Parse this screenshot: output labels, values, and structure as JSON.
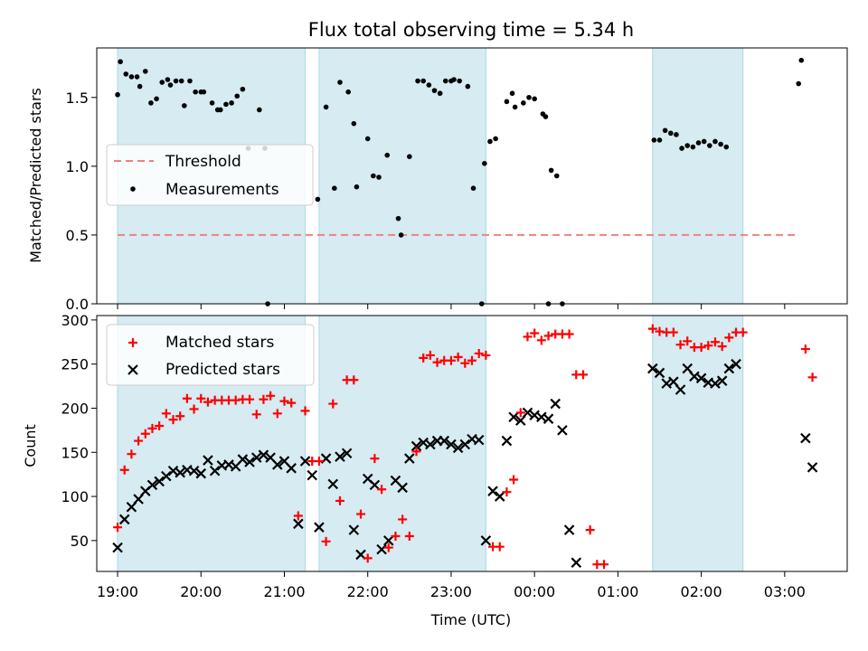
{
  "title": "Flux total observing time = 5.34 h",
  "chart_data": [
    {
      "type": "scatter",
      "ylabel": "Matched/Predicted stars",
      "ylim": [
        0,
        1.86
      ],
      "yticks": [
        "0.0",
        "0.5",
        "1.0",
        "1.5"
      ],
      "legend": {
        "placement": "center-left",
        "threshold_label": "Threshold",
        "measurements_label": "Measurements"
      },
      "threshold": 0.5,
      "threshold_color": "#f08080",
      "threshold_x_range": [
        "19:00",
        "03:10"
      ],
      "measurements": [
        [
          "19:00",
          1.52
        ],
        [
          "19:02",
          1.76
        ],
        [
          "19:06",
          1.67
        ],
        [
          "19:10",
          1.65
        ],
        [
          "19:14",
          1.65
        ],
        [
          "19:16",
          1.58
        ],
        [
          "19:20",
          1.69
        ],
        [
          "19:24",
          1.46
        ],
        [
          "19:28",
          1.49
        ],
        [
          "19:32",
          1.61
        ],
        [
          "19:36",
          1.63
        ],
        [
          "19:38",
          1.59
        ],
        [
          "19:42",
          1.62
        ],
        [
          "19:46",
          1.62
        ],
        [
          "19:48",
          1.44
        ],
        [
          "19:52",
          1.62
        ],
        [
          "19:56",
          1.54
        ],
        [
          "20:00",
          1.54
        ],
        [
          "20:02",
          1.54
        ],
        [
          "20:08",
          1.46
        ],
        [
          "20:12",
          1.41
        ],
        [
          "20:14",
          1.41
        ],
        [
          "20:18",
          1.45
        ],
        [
          "20:22",
          1.46
        ],
        [
          "20:26",
          1.51
        ],
        [
          "20:30",
          1.56
        ],
        [
          "20:34",
          1.13
        ],
        [
          "20:42",
          1.41
        ],
        [
          "20:46",
          1.13
        ],
        [
          "20:48",
          0.0
        ],
        [
          "21:24",
          0.76
        ],
        [
          "21:30",
          1.43
        ],
        [
          "21:36",
          0.84
        ],
        [
          "21:40",
          1.61
        ],
        [
          "21:46",
          1.54
        ],
        [
          "21:50",
          1.31
        ],
        [
          "21:52",
          0.85
        ],
        [
          "22:00",
          1.2
        ],
        [
          "22:04",
          0.93
        ],
        [
          "22:08",
          0.92
        ],
        [
          "22:14",
          1.08
        ],
        [
          "22:22",
          0.62
        ],
        [
          "22:24",
          0.5
        ],
        [
          "22:30",
          1.07
        ],
        [
          "22:36",
          1.62
        ],
        [
          "22:40",
          1.62
        ],
        [
          "22:44",
          1.59
        ],
        [
          "22:48",
          1.55
        ],
        [
          "22:52",
          1.53
        ],
        [
          "22:56",
          1.62
        ],
        [
          "23:00",
          1.62
        ],
        [
          "23:02",
          1.63
        ],
        [
          "23:06",
          1.62
        ],
        [
          "23:12",
          1.58
        ],
        [
          "23:16",
          0.84
        ],
        [
          "23:22",
          0.0
        ],
        [
          "23:24",
          1.02
        ],
        [
          "23:28",
          1.18
        ],
        [
          "23:32",
          1.2
        ],
        [
          "23:40",
          1.47
        ],
        [
          "23:44",
          1.53
        ],
        [
          "23:46",
          1.43
        ],
        [
          "23:52",
          1.46
        ],
        [
          "23:56",
          1.5
        ],
        [
          "00:00",
          1.49
        ],
        [
          "00:06",
          1.38
        ],
        [
          "00:08",
          1.36
        ],
        [
          "00:10",
          0.0
        ],
        [
          "00:12",
          0.97
        ],
        [
          "00:16",
          0.93
        ],
        [
          "00:20",
          0.0
        ],
        [
          "01:26",
          1.19
        ],
        [
          "01:30",
          1.19
        ],
        [
          "01:34",
          1.26
        ],
        [
          "01:38",
          1.24
        ],
        [
          "01:42",
          1.23
        ],
        [
          "01:46",
          1.13
        ],
        [
          "01:50",
          1.15
        ],
        [
          "01:54",
          1.14
        ],
        [
          "01:58",
          1.17
        ],
        [
          "02:02",
          1.18
        ],
        [
          "02:06",
          1.15
        ],
        [
          "02:10",
          1.18
        ],
        [
          "02:14",
          1.16
        ],
        [
          "02:18",
          1.14
        ],
        [
          "03:10",
          1.6
        ],
        [
          "03:12",
          1.77
        ]
      ]
    },
    {
      "type": "scatter",
      "xlabel": "Time (UTC)",
      "ylabel": "Count",
      "ylim": [
        15,
        305
      ],
      "yticks": [
        "50",
        "100",
        "150",
        "200",
        "250",
        "300"
      ],
      "xticks": [
        "19:00",
        "20:00",
        "21:00",
        "22:00",
        "23:00",
        "00:00",
        "01:00",
        "02:00",
        "03:00"
      ],
      "xlim": [
        "18:45",
        "03:45"
      ],
      "legend": {
        "placement": "top-left",
        "matched_label": "Matched stars",
        "predicted_label": "Predicted stars"
      },
      "matched_color": "#ff0000",
      "predicted_color": "#000000",
      "shaded_spans": [
        [
          "19:00",
          "21:15"
        ],
        [
          "21:25",
          "23:25"
        ],
        [
          "01:25",
          "02:30"
        ]
      ],
      "shade_color": "#add8e6",
      "series": [
        {
          "name": "Matched stars",
          "points": [
            [
              "19:00",
              65
            ],
            [
              "19:05",
              130
            ],
            [
              "19:10",
              148
            ],
            [
              "19:15",
              163
            ],
            [
              "19:20",
              171
            ],
            [
              "19:25",
              177
            ],
            [
              "19:30",
              180
            ],
            [
              "19:35",
              194
            ],
            [
              "19:40",
              187
            ],
            [
              "19:45",
              191
            ],
            [
              "19:50",
              211
            ],
            [
              "19:55",
              199
            ],
            [
              "20:00",
              211
            ],
            [
              "20:05",
              207
            ],
            [
              "20:10",
              209
            ],
            [
              "20:15",
              209
            ],
            [
              "20:20",
              209
            ],
            [
              "20:25",
              209
            ],
            [
              "20:30",
              210
            ],
            [
              "20:35",
              210
            ],
            [
              "20:40",
              193
            ],
            [
              "20:45",
              210
            ],
            [
              "20:50",
              214
            ],
            [
              "20:55",
              194
            ],
            [
              "21:00",
              208
            ],
            [
              "21:05",
              206
            ],
            [
              "21:10",
              78
            ],
            [
              "21:15",
              197
            ],
            [
              "21:20",
              140
            ],
            [
              "21:25",
              140
            ],
            [
              "21:30",
              49
            ],
            [
              "21:35",
              205
            ],
            [
              "21:40",
              95
            ],
            [
              "21:45",
              232
            ],
            [
              "21:50",
              232
            ],
            [
              "21:55",
              80
            ],
            [
              "22:00",
              30
            ],
            [
              "22:05",
              143
            ],
            [
              "22:10",
              108
            ],
            [
              "22:15",
              42
            ],
            [
              "22:20",
              55
            ],
            [
              "22:25",
              74
            ],
            [
              "22:30",
              55
            ],
            [
              "22:35",
              151
            ],
            [
              "22:40",
              257
            ],
            [
              "22:45",
              260
            ],
            [
              "22:50",
              252
            ],
            [
              "22:55",
              254
            ],
            [
              "23:00",
              254
            ],
            [
              "23:05",
              258
            ],
            [
              "23:10",
              251
            ],
            [
              "23:15",
              254
            ],
            [
              "23:20",
              262
            ],
            [
              "23:25",
              260
            ],
            [
              "23:30",
              43
            ],
            [
              "23:35",
              43
            ],
            [
              "23:40",
              105
            ],
            [
              "23:45",
              119
            ],
            [
              "23:50",
              195
            ],
            [
              "23:55",
              281
            ],
            [
              "00:00",
              285
            ],
            [
              "00:05",
              277
            ],
            [
              "00:10",
              282
            ],
            [
              "00:15",
              284
            ],
            [
              "00:20",
              284
            ],
            [
              "00:25",
              284
            ],
            [
              "00:30",
              238
            ],
            [
              "00:35",
              238
            ],
            [
              "00:40",
              62
            ],
            [
              "00:45",
              23
            ],
            [
              "00:50",
              23
            ],
            [
              "01:25",
              290
            ],
            [
              "01:30",
              287
            ],
            [
              "01:35",
              286
            ],
            [
              "01:40",
              286
            ],
            [
              "01:45",
              272
            ],
            [
              "01:50",
              276
            ],
            [
              "01:55",
              269
            ],
            [
              "02:00",
              269
            ],
            [
              "02:05",
              271
            ],
            [
              "02:10",
              275
            ],
            [
              "02:15",
              270
            ],
            [
              "02:20",
              280
            ],
            [
              "02:25",
              286
            ],
            [
              "02:30",
              286
            ],
            [
              "03:15",
              267
            ],
            [
              "03:20",
              235
            ]
          ]
        },
        {
          "name": "Predicted stars",
          "points": [
            [
              "19:00",
              42
            ],
            [
              "19:05",
              74
            ],
            [
              "19:10",
              88
            ],
            [
              "19:15",
              97
            ],
            [
              "19:20",
              106
            ],
            [
              "19:25",
              113
            ],
            [
              "19:30",
              117
            ],
            [
              "19:35",
              123
            ],
            [
              "19:40",
              129
            ],
            [
              "19:45",
              127
            ],
            [
              "19:50",
              130
            ],
            [
              "19:55",
              129
            ],
            [
              "20:00",
              126
            ],
            [
              "20:05",
              141
            ],
            [
              "20:10",
              129
            ],
            [
              "20:15",
              135
            ],
            [
              "20:20",
              136
            ],
            [
              "20:25",
              134
            ],
            [
              "20:30",
              142
            ],
            [
              "20:35",
              139
            ],
            [
              "20:40",
              144
            ],
            [
              "20:45",
              147
            ],
            [
              "20:50",
              144
            ],
            [
              "20:55",
              136
            ],
            [
              "21:00",
              140
            ],
            [
              "21:05",
              132
            ],
            [
              "21:10",
              69
            ],
            [
              "21:15",
              140
            ],
            [
              "21:20",
              124
            ],
            [
              "21:25",
              65
            ],
            [
              "21:30",
              143
            ],
            [
              "21:35",
              114
            ],
            [
              "21:40",
              145
            ],
            [
              "21:45",
              149
            ],
            [
              "21:50",
              62
            ],
            [
              "21:55",
              34
            ],
            [
              "22:00",
              120
            ],
            [
              "22:05",
              113
            ],
            [
              "22:10",
              40
            ],
            [
              "22:15",
              50
            ],
            [
              "22:20",
              118
            ],
            [
              "22:25",
              110
            ],
            [
              "22:30",
              143
            ],
            [
              "22:35",
              157
            ],
            [
              "22:40",
              161
            ],
            [
              "22:45",
              159
            ],
            [
              "22:50",
              163
            ],
            [
              "22:55",
              163
            ],
            [
              "23:00",
              159
            ],
            [
              "23:05",
              155
            ],
            [
              "23:10",
              159
            ],
            [
              "23:15",
              165
            ],
            [
              "23:20",
              164
            ],
            [
              "23:25",
              50
            ],
            [
              "23:30",
              106
            ],
            [
              "23:35",
              100
            ],
            [
              "23:40",
              163
            ],
            [
              "23:45",
              190
            ],
            [
              "23:50",
              186
            ],
            [
              "23:55",
              195
            ],
            [
              "00:00",
              192
            ],
            [
              "00:05",
              190
            ],
            [
              "00:10",
              188
            ],
            [
              "00:15",
              205
            ],
            [
              "00:20",
              175
            ],
            [
              "00:25",
              62
            ],
            [
              "00:30",
              25
            ],
            [
              "01:25",
              245
            ],
            [
              "01:30",
              240
            ],
            [
              "01:35",
              228
            ],
            [
              "01:40",
              230
            ],
            [
              "01:45",
              221
            ],
            [
              "01:50",
              245
            ],
            [
              "01:55",
              236
            ],
            [
              "02:00",
              234
            ],
            [
              "02:05",
              229
            ],
            [
              "02:10",
              228
            ],
            [
              "02:15",
              231
            ],
            [
              "02:20",
              245
            ],
            [
              "02:25",
              250
            ],
            [
              "03:15",
              166
            ],
            [
              "03:20",
              133
            ]
          ]
        }
      ]
    }
  ]
}
